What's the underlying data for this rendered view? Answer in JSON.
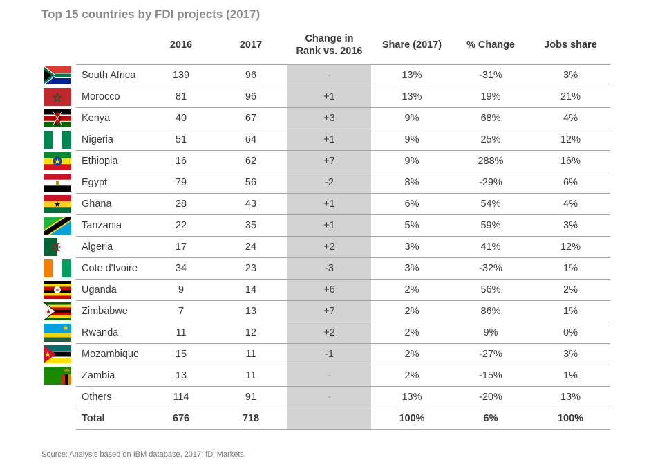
{
  "title": "Top 15 countries by FDI projects (2017)",
  "headers": {
    "y2016": "2016",
    "y2017": "2017",
    "rank_line1": "Change in",
    "rank_line2": "Rank vs. 2016",
    "share": "Share (2017)",
    "pct": "% Change",
    "jobs": "Jobs share"
  },
  "rows": [
    {
      "country": "South Africa",
      "flag": "south-africa",
      "y2016": "139",
      "y2017": "96",
      "rank": "-",
      "share": "13%",
      "pct": "-31%",
      "jobs": "3%"
    },
    {
      "country": "Morocco",
      "flag": "morocco",
      "y2016": "81",
      "y2017": "96",
      "rank": "+1",
      "share": "13%",
      "pct": "19%",
      "jobs": "21%"
    },
    {
      "country": "Kenya",
      "flag": "kenya",
      "y2016": "40",
      "y2017": "67",
      "rank": "+3",
      "share": "9%",
      "pct": "68%",
      "jobs": "4%"
    },
    {
      "country": "Nigeria",
      "flag": "nigeria",
      "y2016": "51",
      "y2017": "64",
      "rank": "+1",
      "share": "9%",
      "pct": "25%",
      "jobs": "12%"
    },
    {
      "country": "Ethiopia",
      "flag": "ethiopia",
      "y2016": "16",
      "y2017": "62",
      "rank": "+7",
      "share": "9%",
      "pct": "288%",
      "jobs": "16%"
    },
    {
      "country": "Egypt",
      "flag": "egypt",
      "y2016": "79",
      "y2017": "56",
      "rank": "-2",
      "share": "8%",
      "pct": "-29%",
      "jobs": "6%"
    },
    {
      "country": "Ghana",
      "flag": "ghana",
      "y2016": "28",
      "y2017": "43",
      "rank": "+1",
      "share": "6%",
      "pct": "54%",
      "jobs": "4%"
    },
    {
      "country": "Tanzania",
      "flag": "tanzania",
      "y2016": "22",
      "y2017": "35",
      "rank": "+1",
      "share": "5%",
      "pct": "59%",
      "jobs": "3%"
    },
    {
      "country": "Algeria",
      "flag": "algeria",
      "y2016": "17",
      "y2017": "24",
      "rank": "+2",
      "share": "3%",
      "pct": "41%",
      "jobs": "12%"
    },
    {
      "country": "Cote d'Ivoire",
      "flag": "cote-divoire",
      "y2016": "34",
      "y2017": "23",
      "rank": "-3",
      "share": "3%",
      "pct": "-32%",
      "jobs": "1%"
    },
    {
      "country": "Uganda",
      "flag": "uganda",
      "y2016": "9",
      "y2017": "14",
      "rank": "+6",
      "share": "2%",
      "pct": "56%",
      "jobs": "2%"
    },
    {
      "country": "Zimbabwe",
      "flag": "zimbabwe",
      "y2016": "7",
      "y2017": "13",
      "rank": "+7",
      "share": "2%",
      "pct": "86%",
      "jobs": "1%"
    },
    {
      "country": "Rwanda",
      "flag": "rwanda",
      "y2016": "11",
      "y2017": "12",
      "rank": "+2",
      "share": "2%",
      "pct": "9%",
      "jobs": "0%"
    },
    {
      "country": "Mozambique",
      "flag": "mozambique",
      "y2016": "15",
      "y2017": "11",
      "rank": "-1",
      "share": "2%",
      "pct": "-27%",
      "jobs": "3%"
    },
    {
      "country": "Zambia",
      "flag": "zambia",
      "y2016": "13",
      "y2017": "11",
      "rank": "-",
      "share": "2%",
      "pct": "-15%",
      "jobs": "1%"
    },
    {
      "country": "Others",
      "flag": "",
      "y2016": "114",
      "y2017": "91",
      "rank": "-",
      "share": "13%",
      "pct": "-20%",
      "jobs": "13%"
    }
  ],
  "total": {
    "country": "Total",
    "y2016": "676",
    "y2017": "718",
    "rank": "",
    "share": "100%",
    "pct": "6%",
    "jobs": "100%"
  },
  "source": "Source: Analysis based on IBM database, 2017; fDi Markets."
}
